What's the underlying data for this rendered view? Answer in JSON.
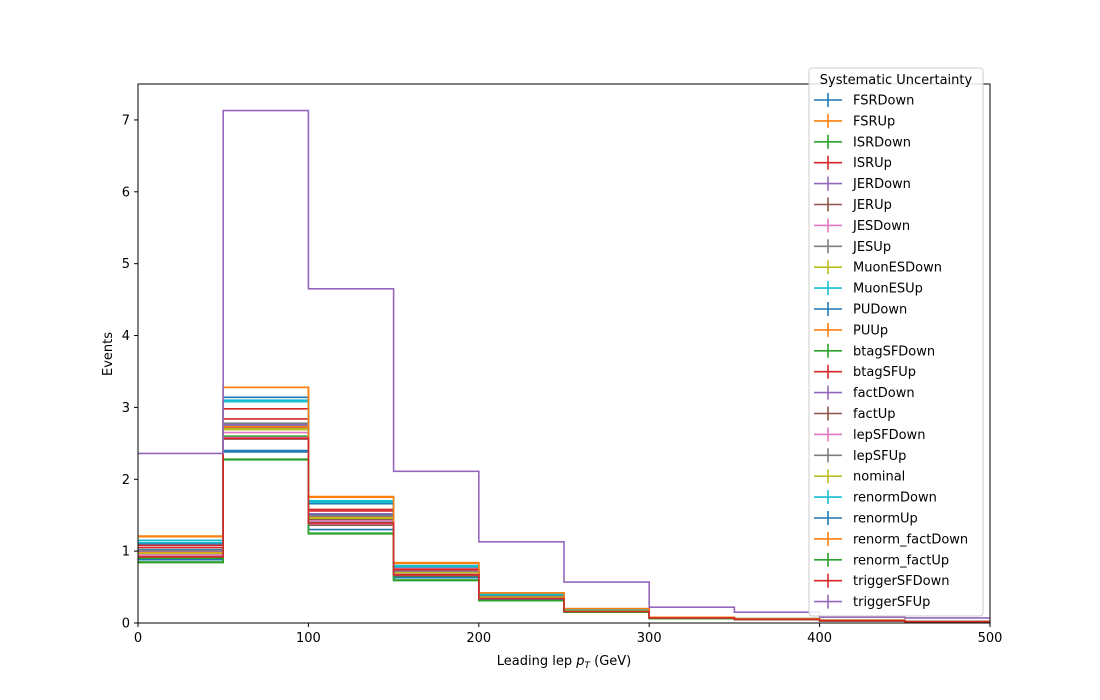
{
  "chart_data": {
    "type": "line",
    "drawstyle": "step",
    "xlabel_main": "Leading lep ",
    "xlabel_var": "p",
    "xlabel_sub": "T",
    "xlabel_unit": " (GeV)",
    "ylabel": "Events",
    "xlim": [
      0,
      500
    ],
    "ylim": [
      0,
      7.5
    ],
    "x_ticks": [
      "0",
      "100",
      "200",
      "300",
      "400",
      "500"
    ],
    "y_ticks": [
      "0",
      "1",
      "2",
      "3",
      "4",
      "5",
      "6",
      "7"
    ],
    "bin_edges": [
      0,
      50,
      100,
      150,
      200,
      250,
      300,
      350,
      400,
      450,
      500
    ],
    "legend_title": "Systematic Uncertainty",
    "legend_position": "upper right",
    "series": [
      {
        "name": "FSRDown",
        "color": "#1f77b4",
        "values": [
          1.02,
          2.38,
          1.5,
          0.7,
          0.36,
          0.17,
          0.07,
          0.05,
          0.03,
          0.02
        ]
      },
      {
        "name": "FSRUp",
        "color": "#ff7f0e",
        "values": [
          1.21,
          3.28,
          1.75,
          0.83,
          0.42,
          0.2,
          0.08,
          0.06,
          0.04,
          0.02
        ]
      },
      {
        "name": "ISRDown",
        "color": "#2ca02c",
        "values": [
          0.9,
          2.6,
          1.4,
          0.65,
          0.34,
          0.16,
          0.07,
          0.05,
          0.03,
          0.02
        ]
      },
      {
        "name": "ISRUp",
        "color": "#d62728",
        "values": [
          1.05,
          2.98,
          1.58,
          0.75,
          0.38,
          0.18,
          0.07,
          0.05,
          0.03,
          0.02
        ]
      },
      {
        "name": "JERDown",
        "color": "#9467bd",
        "values": [
          0.98,
          2.7,
          1.45,
          0.7,
          0.36,
          0.17,
          0.07,
          0.05,
          0.03,
          0.02
        ]
      },
      {
        "name": "JERUp",
        "color": "#8c564b",
        "values": [
          0.96,
          2.72,
          1.44,
          0.69,
          0.35,
          0.17,
          0.07,
          0.05,
          0.03,
          0.02
        ]
      },
      {
        "name": "JESDown",
        "color": "#e377c2",
        "values": [
          0.95,
          2.65,
          1.42,
          0.68,
          0.35,
          0.17,
          0.07,
          0.05,
          0.03,
          0.02
        ]
      },
      {
        "name": "JESUp",
        "color": "#7f7f7f",
        "values": [
          1.0,
          2.75,
          1.48,
          0.71,
          0.36,
          0.17,
          0.07,
          0.05,
          0.03,
          0.02
        ]
      },
      {
        "name": "MuonESDown",
        "color": "#bcbd22",
        "values": [
          0.97,
          2.69,
          1.46,
          0.7,
          0.36,
          0.17,
          0.07,
          0.05,
          0.03,
          0.02
        ]
      },
      {
        "name": "MuonESUp",
        "color": "#17becf",
        "values": [
          1.15,
          3.1,
          1.7,
          0.8,
          0.4,
          0.19,
          0.08,
          0.06,
          0.04,
          0.02
        ]
      },
      {
        "name": "PUDown",
        "color": "#1f77b4",
        "values": [
          1.1,
          3.14,
          1.66,
          0.78,
          0.39,
          0.19,
          0.08,
          0.06,
          0.04,
          0.02
        ]
      },
      {
        "name": "PUUp",
        "color": "#ff7f0e",
        "values": [
          0.99,
          2.73,
          1.47,
          0.71,
          0.36,
          0.17,
          0.07,
          0.05,
          0.03,
          0.02
        ]
      },
      {
        "name": "btagSFDown",
        "color": "#2ca02c",
        "values": [
          0.85,
          2.28,
          1.25,
          0.6,
          0.32,
          0.15,
          0.07,
          0.05,
          0.03,
          0.02
        ]
      },
      {
        "name": "btagSFUp",
        "color": "#d62728",
        "values": [
          1.08,
          2.84,
          1.56,
          0.74,
          0.37,
          0.18,
          0.07,
          0.05,
          0.03,
          0.02
        ]
      },
      {
        "name": "factDown",
        "color": "#9467bd",
        "values": [
          1.0,
          2.76,
          1.52,
          0.72,
          0.36,
          0.17,
          0.07,
          0.05,
          0.03,
          0.02
        ]
      },
      {
        "name": "factUp",
        "color": "#8c564b",
        "values": [
          0.93,
          2.56,
          1.36,
          0.66,
          0.34,
          0.16,
          0.07,
          0.05,
          0.03,
          0.02
        ]
      },
      {
        "name": "lepSFDown",
        "color": "#e377c2",
        "values": [
          0.94,
          2.58,
          1.38,
          0.67,
          0.34,
          0.16,
          0.07,
          0.05,
          0.03,
          0.02
        ]
      },
      {
        "name": "lepSFUp",
        "color": "#7f7f7f",
        "values": [
          1.01,
          2.78,
          1.49,
          0.71,
          0.36,
          0.17,
          0.07,
          0.05,
          0.03,
          0.02
        ]
      },
      {
        "name": "nominal",
        "color": "#bcbd22",
        "values": [
          0.97,
          2.7,
          1.46,
          0.7,
          0.36,
          0.17,
          0.07,
          0.05,
          0.03,
          0.02
        ]
      },
      {
        "name": "renormDown",
        "color": "#17becf",
        "values": [
          1.12,
          3.08,
          1.68,
          0.79,
          0.39,
          0.19,
          0.08,
          0.06,
          0.04,
          0.02
        ]
      },
      {
        "name": "renormUp",
        "color": "#1f77b4",
        "values": [
          0.88,
          2.4,
          1.3,
          0.63,
          0.33,
          0.16,
          0.07,
          0.05,
          0.03,
          0.02
        ]
      },
      {
        "name": "renorm_factDown",
        "color": "#ff7f0e",
        "values": [
          1.2,
          3.28,
          1.76,
          0.84,
          0.42,
          0.2,
          0.08,
          0.06,
          0.04,
          0.02
        ]
      },
      {
        "name": "renorm_factUp",
        "color": "#2ca02c",
        "values": [
          0.84,
          2.27,
          1.24,
          0.59,
          0.31,
          0.15,
          0.06,
          0.05,
          0.03,
          0.02
        ]
      },
      {
        "name": "triggerSFDown",
        "color": "#d62728",
        "values": [
          0.92,
          2.57,
          1.39,
          0.67,
          0.34,
          0.16,
          0.07,
          0.05,
          0.03,
          0.02
        ]
      },
      {
        "name": "triggerSFUp",
        "color": "#9467bd",
        "values": [
          2.36,
          7.13,
          4.65,
          2.11,
          1.13,
          0.57,
          0.22,
          0.15,
          0.08,
          0.07
        ]
      }
    ]
  }
}
